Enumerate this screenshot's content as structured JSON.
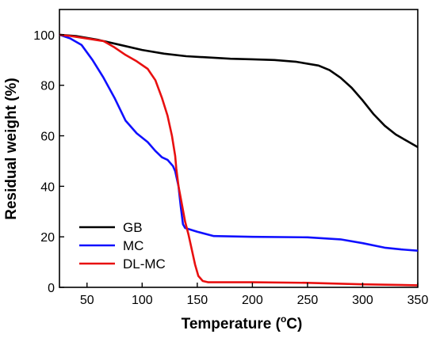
{
  "chart_data": {
    "type": "line",
    "xlabel": "Temperature (",
    "xlabel_sup": "o",
    "xlabel_unit": "C)",
    "ylabel": "Residual weight (%)",
    "xlim": [
      25,
      350
    ],
    "ylim": [
      0,
      110
    ],
    "xticks": [
      50,
      100,
      150,
      200,
      250,
      300,
      350
    ],
    "yticks": [
      0,
      20,
      40,
      60,
      80,
      100
    ],
    "grid": false,
    "legend_position": "bottom-left",
    "series": [
      {
        "name": "GB",
        "color": "#000000",
        "points": [
          [
            25,
            100
          ],
          [
            40,
            99.5
          ],
          [
            60,
            98
          ],
          [
            80,
            96
          ],
          [
            100,
            94
          ],
          [
            120,
            92.5
          ],
          [
            140,
            91.5
          ],
          [
            160,
            91
          ],
          [
            180,
            90.5
          ],
          [
            200,
            90.3
          ],
          [
            220,
            90
          ],
          [
            240,
            89.3
          ],
          [
            260,
            87.8
          ],
          [
            270,
            86
          ],
          [
            280,
            83
          ],
          [
            290,
            79
          ],
          [
            300,
            74
          ],
          [
            310,
            68.5
          ],
          [
            320,
            64
          ],
          [
            330,
            60.5
          ],
          [
            340,
            58
          ],
          [
            350,
            55.5
          ]
        ]
      },
      {
        "name": "MC",
        "color": "#1010ff",
        "points": [
          [
            25,
            100
          ],
          [
            35,
            98.5
          ],
          [
            45,
            96
          ],
          [
            55,
            90
          ],
          [
            65,
            83
          ],
          [
            75,
            75
          ],
          [
            85,
            66
          ],
          [
            95,
            61
          ],
          [
            105,
            57.5
          ],
          [
            112,
            54
          ],
          [
            118,
            51.5
          ],
          [
            123,
            50.5
          ],
          [
            128,
            48
          ],
          [
            130,
            46
          ],
          [
            133,
            40
          ],
          [
            135,
            32
          ],
          [
            137,
            25
          ],
          [
            139,
            23.5
          ],
          [
            150,
            22
          ],
          [
            165,
            20.3
          ],
          [
            200,
            20
          ],
          [
            250,
            19.8
          ],
          [
            280,
            19
          ],
          [
            300,
            17.5
          ],
          [
            320,
            15.7
          ],
          [
            335,
            15
          ],
          [
            350,
            14.5
          ]
        ]
      },
      {
        "name": "DL-MC",
        "color": "#e81010",
        "points": [
          [
            25,
            100
          ],
          [
            35,
            99.5
          ],
          [
            50,
            98.5
          ],
          [
            65,
            97.5
          ],
          [
            75,
            95
          ],
          [
            85,
            92
          ],
          [
            95,
            89.5
          ],
          [
            105,
            86.5
          ],
          [
            112,
            82
          ],
          [
            118,
            75
          ],
          [
            123,
            68
          ],
          [
            127,
            60
          ],
          [
            130,
            52
          ],
          [
            131,
            47
          ],
          [
            133,
            40
          ],
          [
            136,
            33
          ],
          [
            139,
            26
          ],
          [
            142,
            21
          ],
          [
            145,
            15
          ],
          [
            148,
            9
          ],
          [
            151,
            4.5
          ],
          [
            155,
            2.5
          ],
          [
            160,
            2
          ],
          [
            200,
            2
          ],
          [
            250,
            1.8
          ],
          [
            300,
            1.2
          ],
          [
            350,
            0.8
          ]
        ]
      }
    ]
  }
}
